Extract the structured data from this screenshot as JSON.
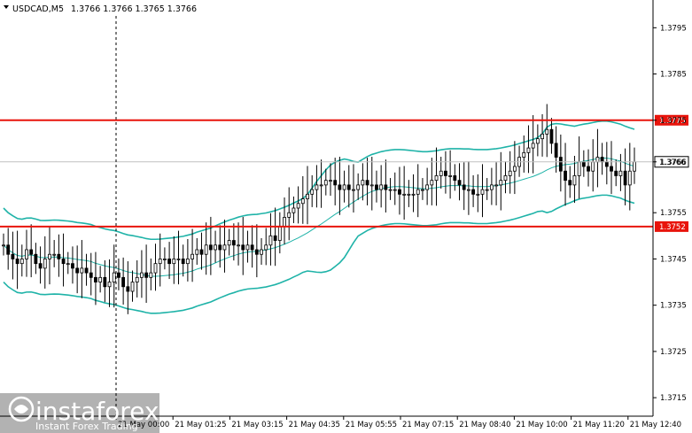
{
  "chart_data": {
    "type": "candlestick",
    "symbol": "USDCAD,M5",
    "ohlc_header": "1.3766 1.3766 1.3765 1.3766",
    "y_ticks": [
      "1.3795",
      "1.3785",
      "1.3775",
      "1.3766",
      "1.3755",
      "1.3745",
      "1.3735",
      "1.3725",
      "1.3715"
    ],
    "y_tick_values": [
      1.3795,
      1.3785,
      1.3775,
      1.3766,
      1.3755,
      1.3745,
      1.3735,
      1.3725,
      1.3715
    ],
    "ylim": [
      1.3711,
      1.3801
    ],
    "x_ticks": [
      "21 May 00:00",
      "21 May 01:25",
      "21 May 03:15",
      "21 May 04:35",
      "21 May 05:55",
      "21 May 07:15",
      "21 May 08:40",
      "21 May 10:00",
      "21 May 11:20",
      "21 May 12:40"
    ],
    "levels": [
      {
        "value": 1.3775,
        "label": "1.3775",
        "color": "#e8140c"
      },
      {
        "value": 1.3752,
        "label": "1.3752",
        "color": "#e8140c"
      }
    ],
    "current_price": {
      "value": 1.3766,
      "label": "1.3766"
    },
    "colors": {
      "bollinger": "#1fb3a8",
      "level": "#e8140c",
      "candle": "#000000"
    },
    "closes": [
      1.3748,
      1.3746,
      1.3745,
      1.3744,
      1.3745,
      1.3747,
      1.3746,
      1.3744,
      1.3743,
      1.3745,
      1.3746,
      1.3746,
      1.3745,
      1.3744,
      1.3744,
      1.3743,
      1.3742,
      1.3743,
      1.3742,
      1.3741,
      1.374,
      1.3741,
      1.3739,
      1.374,
      1.3742,
      1.3741,
      1.3739,
      1.3738,
      1.374,
      1.3741,
      1.3742,
      1.3741,
      1.3742,
      1.3744,
      1.3745,
      1.3745,
      1.3744,
      1.3745,
      1.3745,
      1.3744,
      1.3745,
      1.3746,
      1.3747,
      1.3746,
      1.3748,
      1.3747,
      1.3748,
      1.3747,
      1.3748,
      1.3749,
      1.3748,
      1.3748,
      1.3747,
      1.3748,
      1.3747,
      1.3746,
      1.3747,
      1.3748,
      1.375,
      1.3749,
      1.3752,
      1.3754,
      1.3755,
      1.3756,
      1.3757,
      1.3758,
      1.3759,
      1.376,
      1.3761,
      1.3761,
      1.3762,
      1.3762,
      1.3761,
      1.376,
      1.3761,
      1.376,
      1.376,
      1.3761,
      1.3762,
      1.3761,
      1.3761,
      1.376,
      1.3761,
      1.376,
      1.376,
      1.376,
      1.3759,
      1.3759,
      1.3759,
      1.3759,
      1.376,
      1.376,
      1.3761,
      1.3762,
      1.3763,
      1.3764,
      1.3763,
      1.3763,
      1.3762,
      1.3761,
      1.376,
      1.376,
      1.3759,
      1.3759,
      1.376,
      1.376,
      1.3761,
      1.3761,
      1.3762,
      1.3763,
      1.3764,
      1.3765,
      1.3767,
      1.3768,
      1.3769,
      1.377,
      1.3771,
      1.3772,
      1.3773,
      1.377,
      1.3767,
      1.3764,
      1.3762,
      1.3761,
      1.3763,
      1.3766,
      1.3765,
      1.3764,
      1.3766,
      1.3767,
      1.3766,
      1.3765,
      1.3764,
      1.3763,
      1.3764,
      1.3761,
      1.3764,
      1.3766
    ]
  }
}
